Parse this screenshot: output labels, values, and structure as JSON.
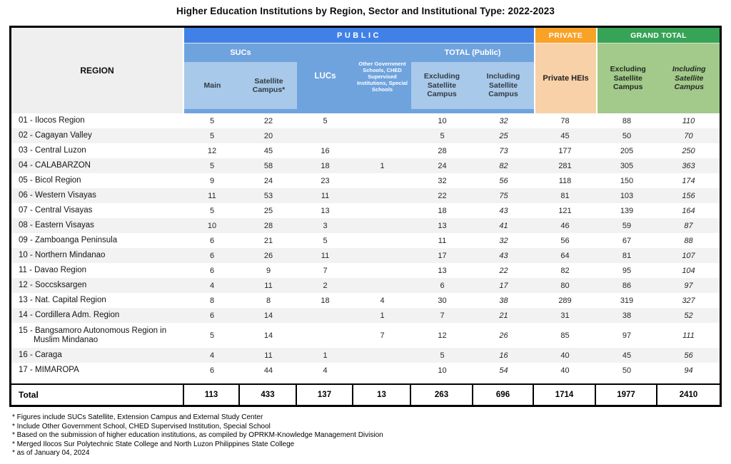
{
  "title": "Higher Education Institutions by Region, Sector and Institutional Type: 2022-2023",
  "header": {
    "region": "REGION",
    "public": "PUBLIC",
    "private": "PRIVATE",
    "grand_total": "GRAND TOTAL",
    "sucs": "SUCs",
    "lucs": "LUCs",
    "other_gov": "Other Government Schools, CHED Supervised Institutions, Special Schools",
    "total_public": "TOTAL (Public)",
    "main": "Main",
    "satellite": "Satellite Campus*",
    "excl": "Excluding Satellite Campus",
    "incl": "Including Satellite Campus",
    "private_heis": "Private HEIs",
    "gt_excl": "Excluding Satellite Campus",
    "gt_incl": "Including Satellite Campus"
  },
  "chart_data": {
    "type": "table",
    "title": "Higher Education Institutions by Region, Sector and Institutional Type: 2022-2023",
    "columns": [
      "REGION",
      "Public SUCs Main",
      "Public SUCs Satellite Campus*",
      "Public LUCs",
      "Public Other Government Schools, CHED Supervised Institutions, Special Schools",
      "Total (Public) Excluding Satellite Campus",
      "Total (Public) Including Satellite Campus",
      "Private HEIs",
      "Grand Total Excluding Satellite Campus",
      "Grand Total Including Satellite Campus"
    ],
    "rows": [
      {
        "region": "01 - Ilocos Region",
        "values": [
          5,
          22,
          5,
          "",
          10,
          32,
          78,
          88,
          110
        ]
      },
      {
        "region": "02 - Cagayan Valley",
        "values": [
          5,
          20,
          "",
          "",
          5,
          25,
          45,
          50,
          70
        ]
      },
      {
        "region": "03 - Central Luzon",
        "values": [
          12,
          45,
          16,
          "",
          28,
          73,
          177,
          205,
          250
        ]
      },
      {
        "region": "04 - CALABARZON",
        "values": [
          5,
          58,
          18,
          1,
          24,
          82,
          281,
          305,
          363
        ]
      },
      {
        "region": "05 - Bicol Region",
        "values": [
          9,
          24,
          23,
          "",
          32,
          56,
          118,
          150,
          174
        ]
      },
      {
        "region": "06 - Western Visayas",
        "values": [
          11,
          53,
          11,
          "",
          22,
          75,
          81,
          103,
          156
        ]
      },
      {
        "region": "07 - Central Visayas",
        "values": [
          5,
          25,
          13,
          "",
          18,
          43,
          121,
          139,
          164
        ]
      },
      {
        "region": "08 - Eastern Visayas",
        "values": [
          10,
          28,
          3,
          "",
          13,
          41,
          46,
          59,
          87
        ]
      },
      {
        "region": "09 - Zamboanga Peninsula",
        "values": [
          6,
          21,
          5,
          "",
          11,
          32,
          56,
          67,
          88
        ]
      },
      {
        "region": "10 - Northern Mindanao",
        "values": [
          6,
          26,
          11,
          "",
          17,
          43,
          64,
          81,
          107
        ]
      },
      {
        "region": "11 - Davao Region",
        "values": [
          6,
          9,
          7,
          "",
          13,
          22,
          82,
          95,
          104
        ]
      },
      {
        "region": "12 - Soccsksargen",
        "values": [
          4,
          11,
          2,
          "",
          6,
          17,
          80,
          86,
          97
        ]
      },
      {
        "region": "13 - Nat. Capital Region",
        "values": [
          8,
          8,
          18,
          4,
          30,
          38,
          289,
          319,
          327
        ]
      },
      {
        "region": "14 - Cordillera Adm. Region",
        "values": [
          6,
          14,
          "",
          1,
          7,
          21,
          31,
          38,
          52
        ]
      },
      {
        "region": "15 - Bangsamoro Autonomous Region in Muslim Mindanao",
        "tall": true,
        "values": [
          5,
          14,
          "",
          7,
          12,
          26,
          85,
          97,
          111
        ]
      },
      {
        "region": "16 - Caraga",
        "values": [
          4,
          11,
          1,
          "",
          5,
          16,
          40,
          45,
          56
        ]
      },
      {
        "region": "17 - MIMAROPA",
        "values": [
          6,
          44,
          4,
          "",
          10,
          54,
          40,
          50,
          94
        ]
      }
    ],
    "total": {
      "label": "Total",
      "values": [
        113,
        433,
        137,
        13,
        263,
        696,
        1714,
        1977,
        2410
      ]
    }
  },
  "footnotes": [
    "* Figures include SUCs Satellite, Extension Campus and External Study Center",
    "* Include Other Government School, CHED Supervised Institution, Special School",
    "* Based on the submission of higher education institutions, as compiled by OPRKM-Knowledge Management Division",
    "* Merged Ilocos Sur Polytechnic State College and North Luzon Philippines State College",
    "* as of January 04,  2024"
  ],
  "colors": {
    "public_blue": "#4181E7",
    "mid_blue": "#6FA3DE",
    "light_blue": "#A8C9E9",
    "orange": "#F9A228",
    "light_orange": "#F8D1A8",
    "green": "#37A357",
    "light_green": "#A3C98B",
    "zebra": "#F2F2F2",
    "header_gray": "#EFEFEF"
  }
}
